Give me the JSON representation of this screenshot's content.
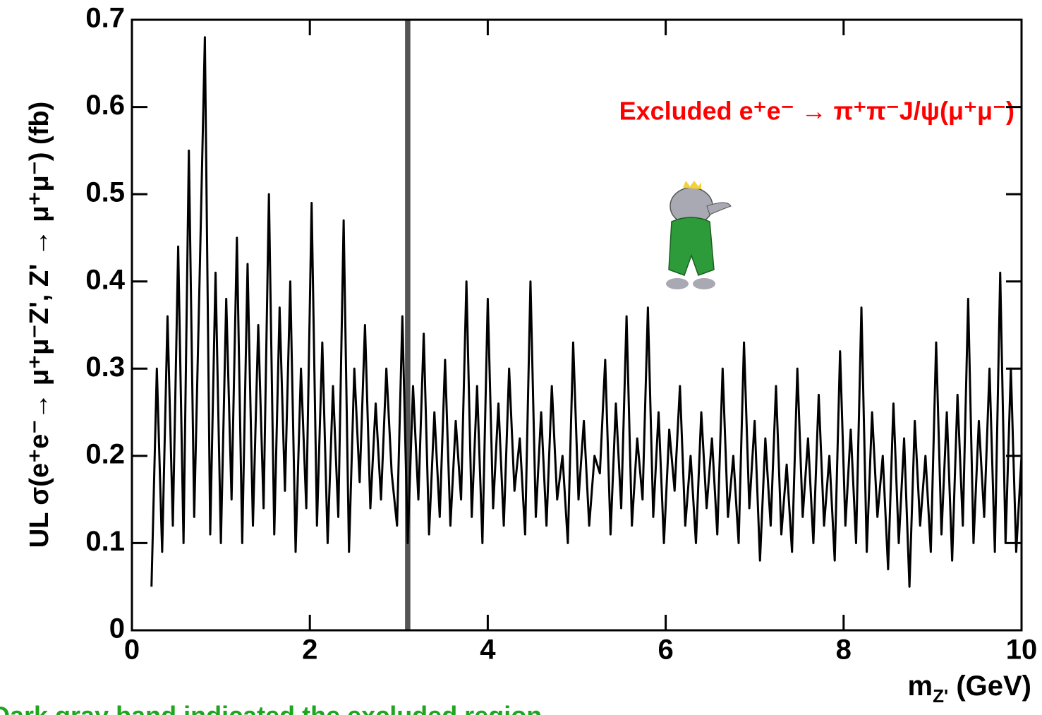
{
  "chart_data": {
    "type": "line",
    "y_label": "UL   σ(e⁺e⁻→ μ⁺μ⁻Z', Z' → μ⁺μ⁻) (fb)",
    "x_label_parts": [
      "m",
      "Z'",
      " (GeV)"
    ],
    "annotation": "Excluded e⁺e⁻ → π⁺π⁻J/ψ(μ⁺μ⁻)",
    "annotation_color": "#ff0000",
    "footnote": "Dark gray band indicated the excluded region.",
    "footnote_color": "#1fa51f",
    "excluded_band": {
      "x": [
        3.07,
        3.13
      ],
      "color": "#555555"
    },
    "xlim": [
      0,
      10
    ],
    "xticks": [
      0,
      2,
      4,
      6,
      8,
      10
    ],
    "ylim": [
      0,
      0.7
    ],
    "yticks": [
      0,
      0.1,
      0.2,
      0.3,
      0.4,
      0.5,
      0.6,
      0.7
    ],
    "x": [
      0.22,
      0.28,
      0.34,
      0.4,
      0.46,
      0.52,
      0.58,
      0.64,
      0.7,
      0.76,
      0.82,
      0.88,
      0.94,
      1.0,
      1.06,
      1.12,
      1.18,
      1.24,
      1.3,
      1.36,
      1.42,
      1.48,
      1.54,
      1.6,
      1.66,
      1.72,
      1.78,
      1.84,
      1.9,
      1.96,
      2.02,
      2.08,
      2.14,
      2.2,
      2.26,
      2.32,
      2.38,
      2.44,
      2.5,
      2.56,
      2.62,
      2.68,
      2.74,
      2.8,
      2.86,
      2.92,
      2.98,
      3.04,
      3.1,
      3.16,
      3.22,
      3.28,
      3.34,
      3.4,
      3.46,
      3.52,
      3.58,
      3.64,
      3.7,
      3.76,
      3.82,
      3.88,
      3.94,
      4.0,
      4.06,
      4.12,
      4.18,
      4.24,
      4.3,
      4.36,
      4.42,
      4.48,
      4.54,
      4.6,
      4.66,
      4.72,
      4.78,
      4.84,
      4.9,
      4.96,
      5.02,
      5.08,
      5.14,
      5.2,
      5.26,
      5.32,
      5.38,
      5.44,
      5.5,
      5.56,
      5.62,
      5.68,
      5.74,
      5.8,
      5.86,
      5.92,
      5.98,
      6.04,
      6.1,
      6.16,
      6.22,
      6.28,
      6.34,
      6.4,
      6.46,
      6.52,
      6.58,
      6.64,
      6.7,
      6.76,
      6.82,
      6.88,
      6.94,
      7.0,
      7.06,
      7.12,
      7.18,
      7.24,
      7.3,
      7.36,
      7.42,
      7.48,
      7.54,
      7.6,
      7.66,
      7.72,
      7.78,
      7.84,
      7.9,
      7.96,
      8.02,
      8.08,
      8.14,
      8.2,
      8.26,
      8.32,
      8.38,
      8.44,
      8.5,
      8.56,
      8.62,
      8.68,
      8.74,
      8.8,
      8.86,
      8.92,
      8.98,
      9.04,
      9.1,
      9.16,
      9.22,
      9.28,
      9.34,
      9.4,
      9.46,
      9.52,
      9.58,
      9.64,
      9.7,
      9.76,
      9.82,
      9.88,
      9.94,
      10.0
    ],
    "series": [
      {
        "color": "#000000",
        "values": [
          0.05,
          0.3,
          0.09,
          0.36,
          0.12,
          0.44,
          0.1,
          0.55,
          0.13,
          0.4,
          0.68,
          0.11,
          0.41,
          0.1,
          0.38,
          0.15,
          0.45,
          0.1,
          0.42,
          0.12,
          0.35,
          0.14,
          0.5,
          0.11,
          0.37,
          0.16,
          0.4,
          0.09,
          0.3,
          0.14,
          0.49,
          0.12,
          0.33,
          0.1,
          0.28,
          0.13,
          0.47,
          0.09,
          0.3,
          0.17,
          0.35,
          0.14,
          0.26,
          0.15,
          0.3,
          0.18,
          0.12,
          0.36,
          0.1,
          0.28,
          0.15,
          0.34,
          0.11,
          0.25,
          0.13,
          0.31,
          0.12,
          0.24,
          0.15,
          0.4,
          0.13,
          0.28,
          0.1,
          0.38,
          0.14,
          0.26,
          0.12,
          0.3,
          0.16,
          0.22,
          0.11,
          0.4,
          0.13,
          0.25,
          0.12,
          0.28,
          0.15,
          0.2,
          0.1,
          0.33,
          0.15,
          0.24,
          0.12,
          0.2,
          0.18,
          0.31,
          0.11,
          0.26,
          0.14,
          0.36,
          0.12,
          0.22,
          0.15,
          0.37,
          0.13,
          0.25,
          0.1,
          0.23,
          0.16,
          0.28,
          0.12,
          0.2,
          0.1,
          0.25,
          0.14,
          0.22,
          0.11,
          0.3,
          0.13,
          0.2,
          0.1,
          0.33,
          0.14,
          0.24,
          0.08,
          0.22,
          0.12,
          0.28,
          0.11,
          0.19,
          0.09,
          0.3,
          0.13,
          0.22,
          0.1,
          0.27,
          0.12,
          0.2,
          0.08,
          0.32,
          0.12,
          0.23,
          0.1,
          0.37,
          0.09,
          0.25,
          0.13,
          0.2,
          0.07,
          0.26,
          0.1,
          0.22,
          0.05,
          0.24,
          0.12,
          0.2,
          0.09,
          0.33,
          0.11,
          0.25,
          0.08,
          0.27,
          0.12,
          0.38,
          0.1,
          0.24,
          0.13,
          0.3,
          0.09,
          0.41,
          0.1,
          0.3,
          0.09,
          0.2
        ]
      }
    ]
  }
}
